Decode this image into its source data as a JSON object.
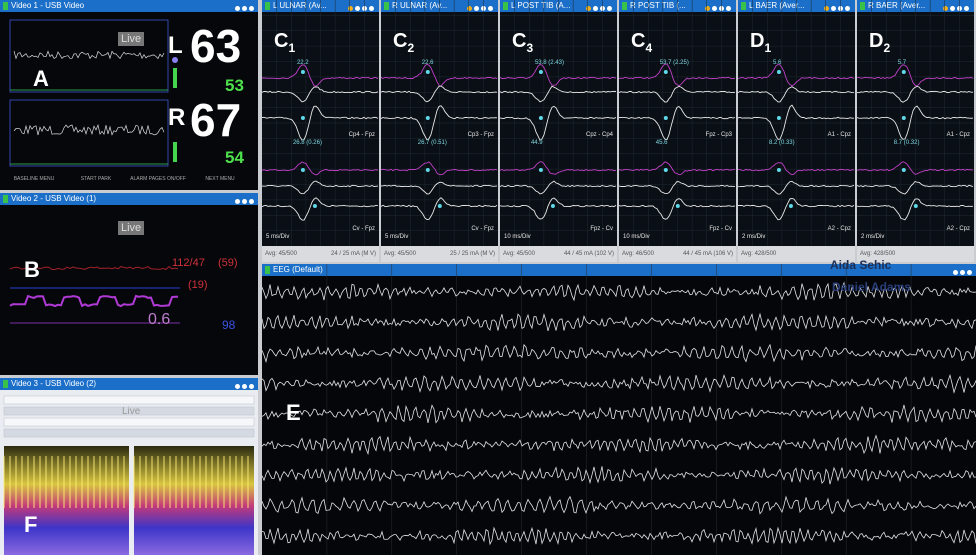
{
  "video1": {
    "title": "Video 1 - USB Video",
    "live": "Live",
    "label": "A",
    "left": {
      "side": "L",
      "value": "63",
      "sub": "53"
    },
    "right": {
      "side": "R",
      "value": "67",
      "sub": "54"
    },
    "buttons": [
      "BASELINE MENU",
      "START PARK",
      "ALARM PAGES ON/OFF",
      "NEXT MENU"
    ]
  },
  "video2": {
    "title": "Video 2 - USB Video (1)",
    "live": "Live",
    "label": "B",
    "readouts": [
      "112/47",
      "(59)",
      "(19)",
      "0.6",
      "98"
    ]
  },
  "video3": {
    "title": "Video 3 - USB Video (2)",
    "live": "Live",
    "label": "F"
  },
  "ep_panels": [
    {
      "title": "L ULNAR (Av...",
      "label": "C",
      "sub": "1",
      "peaks": [
        "22.2",
        "26.8 (0.26)"
      ],
      "channels": [
        "Cp4 - Fpz",
        "Cv - Fpz"
      ],
      "time": "5 ms/Div",
      "avg": "Avg: 45/500",
      "stim": "24 / 25 mA (M V)"
    },
    {
      "title": "R ULNAR (Av...",
      "label": "C",
      "sub": "2",
      "peaks": [
        "22.6",
        "26.7 (0.51)"
      ],
      "channels": [
        "Cp3 - Fpz",
        "Cv - Fpz"
      ],
      "time": "5 ms/Div",
      "avg": "Avg: 45/500",
      "stim": "25 / 25 mA (M V)"
    },
    {
      "title": "L POST TIB (A...",
      "label": "C",
      "sub": "3",
      "peaks": [
        "53.8 (2.43)",
        "44.9"
      ],
      "channels": [
        "Cpz - Cp4",
        "Fpz - Cv"
      ],
      "time": "10 ms/Div",
      "avg": "Avg: 45/500",
      "stim": "44 / 45 mA (102 V)"
    },
    {
      "title": "R POST TIB (...",
      "label": "C",
      "sub": "4",
      "peaks": [
        "53.7 (2.25)",
        "45.6"
      ],
      "channels": [
        "Fpz - Cp3",
        "Fpz - Cv"
      ],
      "time": "10 ms/Div",
      "avg": "Avg: 46/500",
      "stim": "44 / 45 mA (106 V)"
    },
    {
      "title": "L BAER (Aver...",
      "label": "D",
      "sub": "1",
      "peaks": [
        "5.6",
        "8.2 (0.33)"
      ],
      "channels": [
        "A1 - Cpz",
        "A2 - Cpz"
      ],
      "time": "2 ms/Div",
      "avg": "Avg: 428/500",
      "stim": ""
    },
    {
      "title": "R BAER (Aver...",
      "label": "D",
      "sub": "2",
      "peaks": [
        "5.7",
        "8.7 (0.32)"
      ],
      "channels": [
        "A1 - Cpz",
        "A2 - Cpz"
      ],
      "time": "2 ms/Div",
      "avg": "Avg: 428/500",
      "stim": ""
    }
  ],
  "names": [
    "Aida Sehic",
    "Daniel Adams"
  ],
  "eeg": {
    "title": "EEG (Default)",
    "label": "E"
  }
}
